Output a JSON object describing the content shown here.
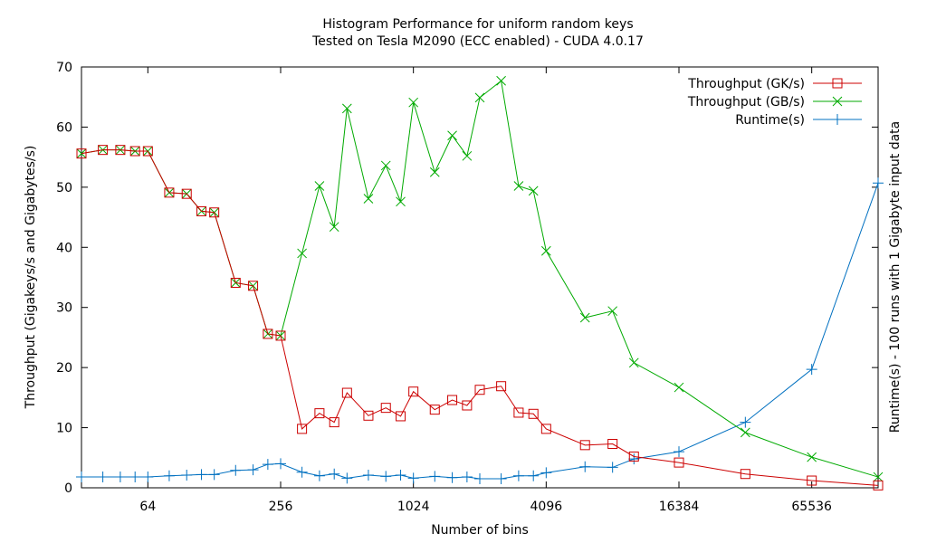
{
  "chart_data": {
    "type": "line",
    "title": "Histogram Performance for uniform random keys",
    "subtitle": "Tested on Tesla M2090 (ECC enabled) - CUDA 4.0.17",
    "xlabel": "Number of bins",
    "ylabel": "Throughput (Gigakeys/s and Gigabytes/s)",
    "y2label": "Runtime(s) - 100 runs with 1 Gigabyte input data",
    "x_scale": "log2",
    "xlim": [
      32,
      131072
    ],
    "ylim": [
      0,
      70
    ],
    "y2lim": [
      0,
      70
    ],
    "x_ticks": [
      64,
      256,
      1024,
      4096,
      16384,
      65536
    ],
    "x_tick_labels": [
      "64",
      "256",
      "1024",
      "4096",
      "16384",
      "65536"
    ],
    "y_ticks": [
      0,
      10,
      20,
      30,
      40,
      50,
      60,
      70
    ],
    "y_tick_labels": [
      "0",
      "10",
      "20",
      "30",
      "40",
      "50",
      "60",
      "70"
    ],
    "legend_position": "top-right",
    "grid": false,
    "x": [
      32,
      40,
      48,
      56,
      64,
      80,
      96,
      112,
      128,
      160,
      192,
      224,
      256,
      320,
      384,
      448,
      512,
      640,
      768,
      896,
      1024,
      1280,
      1536,
      1792,
      2048,
      2560,
      3072,
      3584,
      4096,
      6144,
      8192,
      10240,
      16384,
      32768,
      65536,
      131072
    ],
    "series": [
      {
        "name": "Throughput (GK/s)",
        "color": "#cc0000",
        "marker": "square",
        "x": [
          32,
          40,
          48,
          56,
          64,
          80,
          96,
          112,
          128,
          160,
          192,
          224,
          256,
          320,
          384,
          448,
          512,
          640,
          768,
          896,
          1024,
          1280,
          1536,
          1792,
          2048,
          2560,
          3072,
          3584,
          4096,
          6144,
          8192,
          10240,
          16384,
          32768,
          65536,
          131072
        ],
        "values": [
          55.6,
          56.2,
          56.2,
          56.0,
          56.0,
          49.1,
          48.9,
          46.0,
          45.8,
          34.1,
          33.6,
          25.6,
          25.3,
          9.8,
          12.4,
          10.9,
          15.8,
          12.0,
          13.3,
          11.9,
          16.0,
          13.0,
          14.6,
          13.7,
          16.3,
          16.9,
          12.5,
          12.3,
          9.8,
          7.1,
          7.3,
          5.2,
          4.2,
          2.3,
          1.2,
          0.4
        ]
      },
      {
        "name": "Throughput (GB/s)",
        "color": "#00aa00",
        "marker": "x",
        "x": [
          32,
          40,
          48,
          56,
          64,
          80,
          96,
          112,
          128,
          160,
          192,
          224,
          256,
          320,
          384,
          448,
          512,
          640,
          768,
          896,
          1024,
          1280,
          1536,
          1792,
          2048,
          2560,
          3072,
          3584,
          4096,
          6144,
          8192,
          10240,
          16384,
          32768,
          65536,
          131072
        ],
        "values": [
          55.6,
          56.2,
          56.2,
          56.0,
          56.0,
          49.1,
          48.9,
          46.0,
          45.8,
          34.1,
          33.6,
          25.6,
          25.3,
          39.0,
          50.2,
          43.4,
          63.1,
          48.1,
          53.6,
          47.6,
          64.1,
          52.5,
          58.6,
          55.2,
          64.9,
          67.7,
          50.2,
          49.4,
          39.4,
          28.3,
          29.4,
          20.8,
          16.7,
          9.2,
          5.1,
          1.8
        ]
      },
      {
        "name": "Runtime(s)",
        "color": "#0070c0",
        "marker": "plus",
        "axis": "y2",
        "x": [
          32,
          40,
          48,
          56,
          64,
          80,
          96,
          112,
          128,
          160,
          192,
          224,
          256,
          320,
          384,
          448,
          512,
          640,
          768,
          896,
          1024,
          1280,
          1536,
          1792,
          2048,
          2560,
          3072,
          3584,
          4096,
          6144,
          8192,
          10240,
          16384,
          32768,
          65536,
          131072
        ],
        "values": [
          1.8,
          1.8,
          1.8,
          1.8,
          1.8,
          2.0,
          2.1,
          2.2,
          2.2,
          2.9,
          3.0,
          3.9,
          4.0,
          2.6,
          2.0,
          2.3,
          1.6,
          2.1,
          1.9,
          2.1,
          1.6,
          1.9,
          1.7,
          1.8,
          1.5,
          1.5,
          2.0,
          2.0,
          2.5,
          3.5,
          3.4,
          4.8,
          6.0,
          10.9,
          19.7,
          50.7
        ]
      }
    ]
  }
}
